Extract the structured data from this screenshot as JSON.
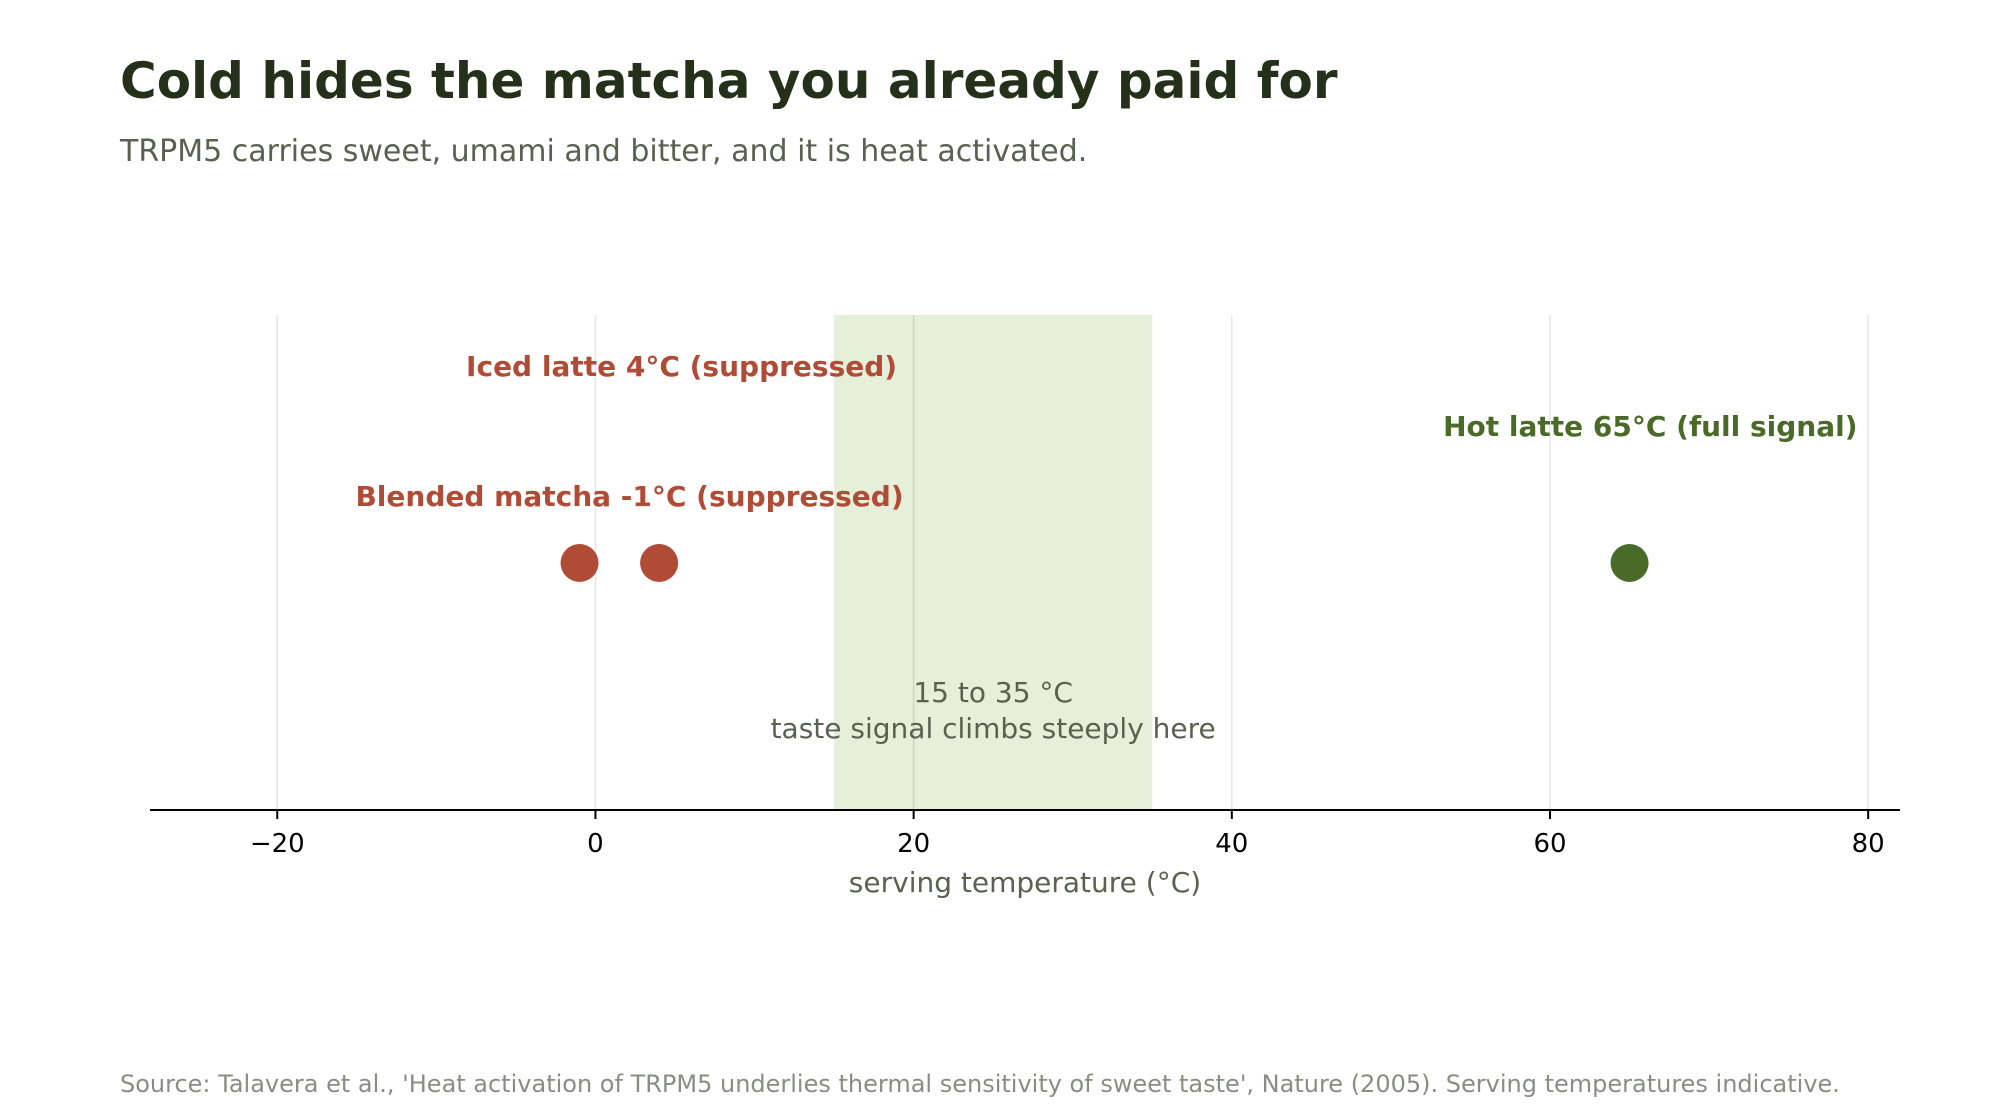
{
  "title": "Cold hides the matcha you already paid for",
  "subtitle": "TRPM5 carries sweet, umami and bitter, and it is heat activated.",
  "source": "Source: Talavera et al., 'Heat activation of TRPM5 underlies thermal sensitivity of sweet taste', Nature (2005). Serving temperatures indicative.",
  "chart_data": {
    "type": "scatter",
    "xlabel": "serving temperature (°C)",
    "xlim": [
      -28,
      82
    ],
    "xticks": [
      -20,
      0,
      20,
      40,
      60,
      80
    ],
    "tick_labels": [
      "−20",
      "0",
      "20",
      "40",
      "60",
      "80"
    ],
    "grid": true,
    "band": {
      "from": 15,
      "to": 35,
      "label_lines": [
        "15 to 35 °C",
        "taste signal climbs steeply here"
      ],
      "color": "#e6efd9"
    },
    "points": [
      {
        "label": "Blended matcha  -1°C  (suppressed)",
        "x": -1,
        "color": "#b04b36"
      },
      {
        "label": "Iced latte  4°C  (suppressed)",
        "x": 4,
        "color": "#b04b36"
      },
      {
        "label": "Hot latte  65°C  (full signal)",
        "x": 65,
        "color": "#4a6a28"
      }
    ]
  }
}
